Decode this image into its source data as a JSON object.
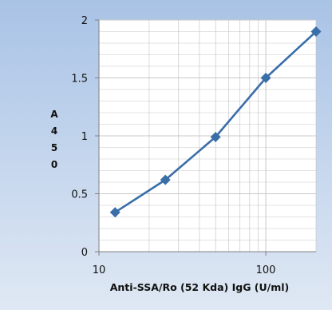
{
  "chart_data": {
    "type": "line",
    "title": "",
    "xlabel": "Anti-SSA/Ro (52 Kda) IgG (U/ml)",
    "ylabel": "A450",
    "x_scale": "log",
    "xlim": [
      10,
      200
    ],
    "ylim": [
      0,
      2
    ],
    "x_tick_labels": [
      "10",
      "100"
    ],
    "y_tick_labels": [
      "0",
      "0.5",
      "1",
      "1.5",
      "2"
    ],
    "grid": true,
    "legend": "none",
    "series": [
      {
        "x": [
          12.5,
          25,
          50,
          100,
          200
        ],
        "y": [
          0.34,
          0.62,
          0.99,
          1.5,
          1.9
        ],
        "marker": "diamond",
        "color": "#3a6ea8"
      }
    ]
  },
  "colors": {
    "background_top": "#a9c3e6",
    "background_bottom": "#dfe8f4",
    "plot_area": "#ffffff",
    "grid": "#c8c8c8",
    "axis": "#7f7f7f",
    "series": "#3a6ea8"
  }
}
